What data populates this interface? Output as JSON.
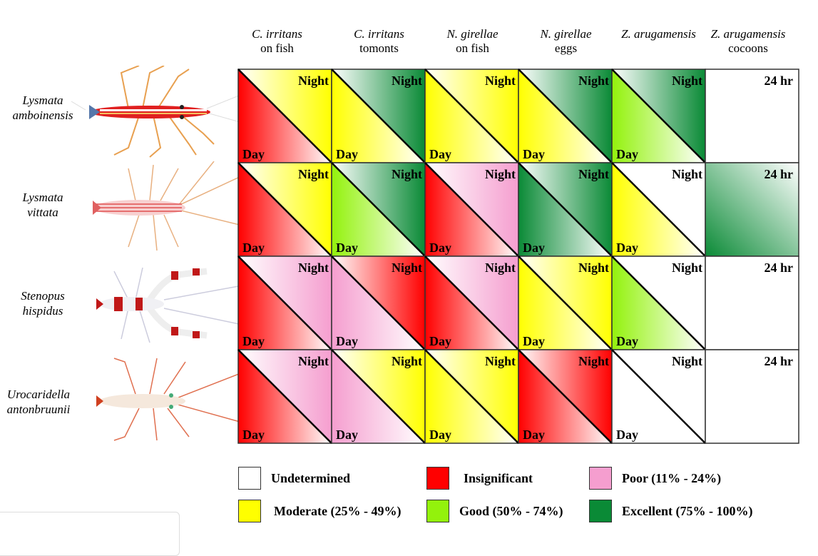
{
  "columns": [
    {
      "species": "C. irritans",
      "target": "on fish"
    },
    {
      "species": "C. irritans",
      "target": "tomonts"
    },
    {
      "species": "N. girellae",
      "target": "on fish"
    },
    {
      "species": "N. girellae",
      "target": "eggs"
    },
    {
      "species": "Z. arugamensis",
      "target": ""
    },
    {
      "species": "Z. arugamensis",
      "target": "cocoons"
    }
  ],
  "rows": [
    {
      "genus": "Lysmata",
      "species": "amboinensis",
      "cells": [
        {
          "night": "moderate",
          "day": "insignificant"
        },
        {
          "night": "excellent",
          "day": "moderate"
        },
        {
          "night": "moderate",
          "day": "moderate"
        },
        {
          "night": "excellent",
          "day": "moderate"
        },
        {
          "night": "excellent",
          "day": "good"
        },
        {
          "all": "undetermined"
        }
      ]
    },
    {
      "genus": "Lysmata",
      "species": "vittata",
      "cells": [
        {
          "night": "moderate",
          "day": "insignificant"
        },
        {
          "night": "excellent",
          "day": "good"
        },
        {
          "night": "poor",
          "day": "insignificant"
        },
        {
          "night": "excellent",
          "day": "excellent"
        },
        {
          "night": "undetermined",
          "day": "moderate"
        },
        {
          "all": "excellent"
        }
      ]
    },
    {
      "genus": "Stenopus",
      "species": "hispidus",
      "cells": [
        {
          "night": "poor",
          "day": "insignificant"
        },
        {
          "night": "insignificant",
          "day": "poor"
        },
        {
          "night": "poor",
          "day": "insignificant"
        },
        {
          "night": "moderate",
          "day": "moderate"
        },
        {
          "night": "undetermined",
          "day": "good"
        },
        {
          "all": "undetermined"
        }
      ]
    },
    {
      "genus": "Urocaridella",
      "species": "antonbruunii",
      "cells": [
        {
          "night": "poor",
          "day": "insignificant"
        },
        {
          "night": "moderate",
          "day": "poor"
        },
        {
          "night": "moderate",
          "day": "moderate"
        },
        {
          "night": "insignificant",
          "day": "insignificant"
        },
        {
          "night": "undetermined",
          "day": "undetermined"
        },
        {
          "all": "undetermined"
        }
      ]
    }
  ],
  "cell_labels": {
    "night": "Night",
    "day": "Day",
    "all": "24 hr"
  },
  "legend": [
    {
      "key": "undetermined",
      "label": "Undetermined",
      "color": "#ffffff"
    },
    {
      "key": "insignificant",
      "label": "Insignificant",
      "color": "#ff0000"
    },
    {
      "key": "poor",
      "label": "Poor (11% - 24%)",
      "color": "#f59ecf"
    },
    {
      "key": "moderate",
      "label": "Moderate (25% - 49%)",
      "color": "#ffff00"
    },
    {
      "key": "good",
      "label": "Good (50% - 74%)",
      "color": "#93f20c"
    },
    {
      "key": "excellent",
      "label": "Excellent (75% - 100%)",
      "color": "#0a8a36"
    }
  ]
}
